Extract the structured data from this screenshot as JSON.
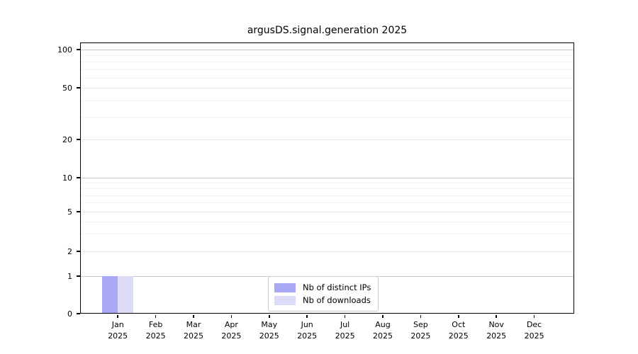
{
  "chart_data": {
    "type": "bar",
    "title": "argusDS.signal.generation 2025",
    "categories": [
      {
        "month": "Jan",
        "year": "2025"
      },
      {
        "month": "Feb",
        "year": "2025"
      },
      {
        "month": "Mar",
        "year": "2025"
      },
      {
        "month": "Apr",
        "year": "2025"
      },
      {
        "month": "May",
        "year": "2025"
      },
      {
        "month": "Jun",
        "year": "2025"
      },
      {
        "month": "Jul",
        "year": "2025"
      },
      {
        "month": "Aug",
        "year": "2025"
      },
      {
        "month": "Sep",
        "year": "2025"
      },
      {
        "month": "Oct",
        "year": "2025"
      },
      {
        "month": "Nov",
        "year": "2025"
      },
      {
        "month": "Dec",
        "year": "2025"
      }
    ],
    "series": [
      {
        "name": "Nb of distinct IPs",
        "color": "#a8a8f4",
        "values": [
          1,
          0,
          0,
          0,
          0,
          0,
          0,
          0,
          0,
          0,
          0,
          0
        ]
      },
      {
        "name": "Nb of downloads",
        "color": "#dcdcf8",
        "values": [
          1,
          0,
          0,
          0,
          0,
          0,
          0,
          0,
          0,
          0,
          0,
          0
        ]
      }
    ],
    "y_axis": {
      "scale": "log-like",
      "tick_labels": [
        0,
        1,
        2,
        5,
        10,
        20,
        50,
        100
      ],
      "minor_gridlines": [
        3,
        4,
        6,
        7,
        8,
        9,
        30,
        40,
        60,
        70,
        80,
        90
      ]
    },
    "legend": {
      "position": "lower center",
      "items": [
        "Nb of distinct IPs",
        "Nb of downloads"
      ]
    },
    "grid": "horizontal",
    "colors": {
      "axis": "#000000",
      "grid_major": "#c9c9c9",
      "grid_mid": "#e8e8e8",
      "grid_minor": "#f2f2f2",
      "background": "#ffffff"
    }
  }
}
